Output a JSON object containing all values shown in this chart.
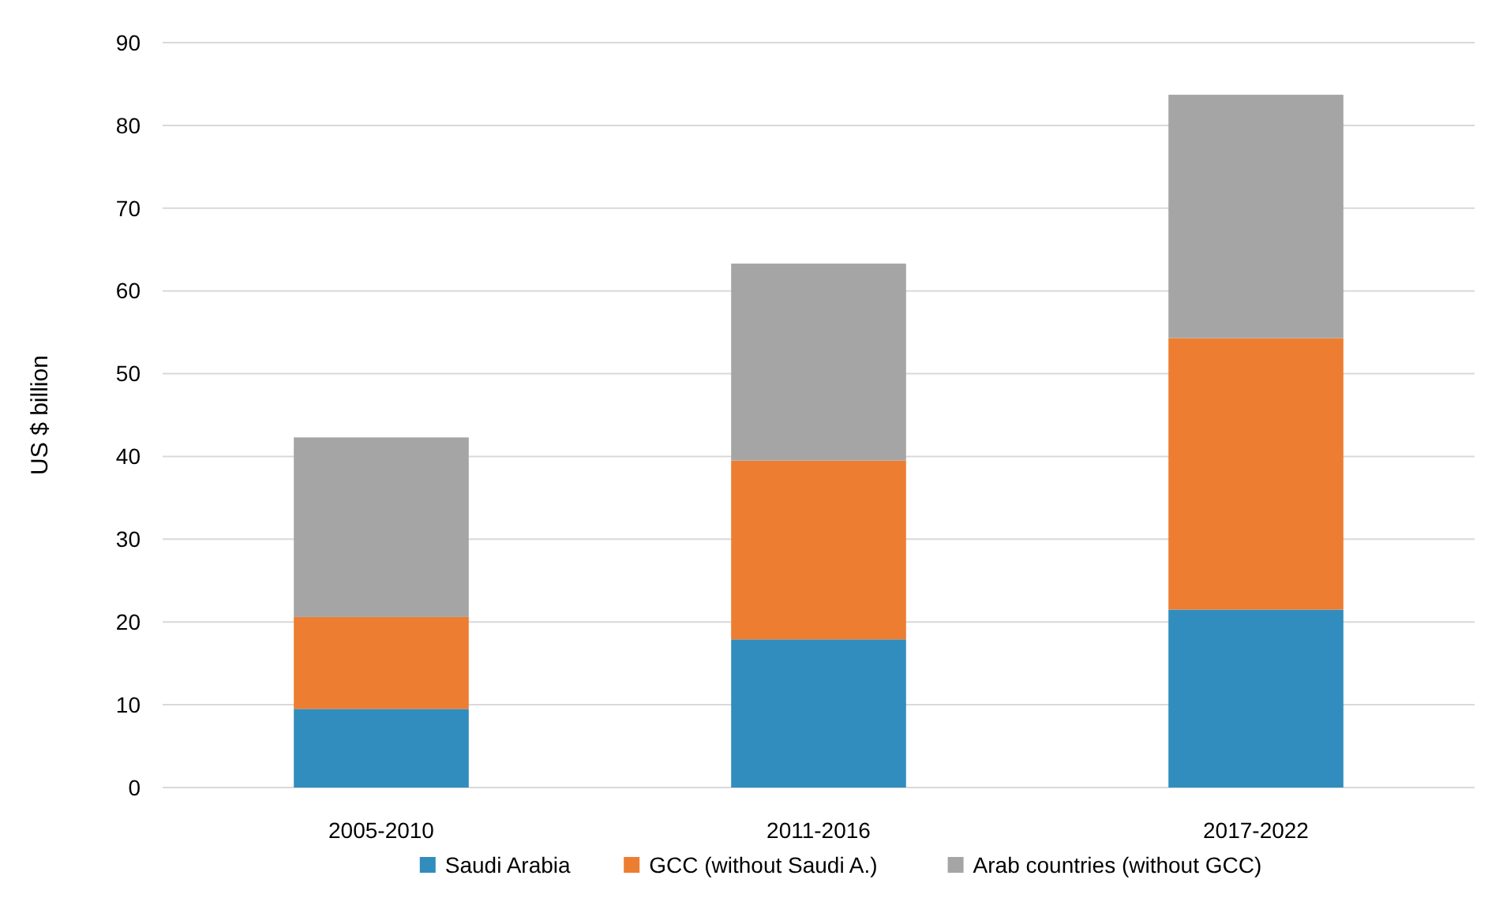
{
  "chart_data": {
    "type": "bar",
    "stacked": true,
    "ylabel": "US $ billion",
    "categories": [
      "2005-2010",
      "2011-2016",
      "2017-2022"
    ],
    "series": [
      {
        "name": "Saudi Arabia",
        "color": "#318dbd",
        "values": [
          9.5,
          17.9,
          21.5
        ]
      },
      {
        "name": "GCC (without Saudi A.)",
        "color": "#ed7d31",
        "values": [
          11.1,
          21.6,
          32.8
        ]
      },
      {
        "name": "Arab countries (without GCC)",
        "color": "#a5a5a5",
        "values": [
          21.7,
          23.8,
          29.4
        ]
      }
    ],
    "ylim": [
      0,
      90
    ],
    "yticks": [
      0,
      10,
      20,
      30,
      40,
      50,
      60,
      70,
      80,
      90
    ],
    "grid": "y",
    "legend": "bottom"
  }
}
